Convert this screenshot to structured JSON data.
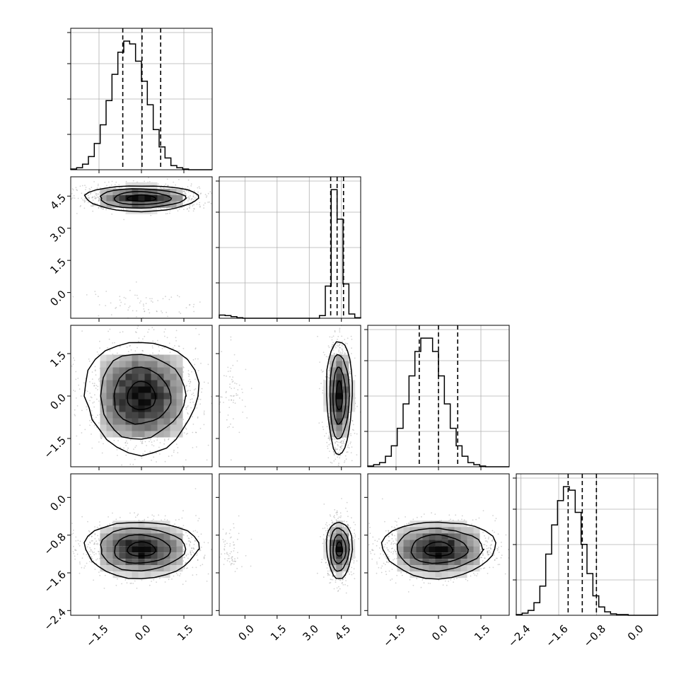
{
  "chart_data": {
    "type": "corner",
    "grid": true,
    "parameters": [
      {
        "range": [
          -2.5,
          2.5
        ],
        "ticks": [
          -1.5,
          0.0,
          1.5
        ],
        "tick_labels": [
          "−1.5",
          "0.0",
          "1.5"
        ],
        "mean": 0.0,
        "std": 1.0,
        "quantiles": [
          -0.66,
          0.02,
          0.68
        ]
      },
      {
        "range": [
          -1.2,
          5.4
        ],
        "ticks": [
          0.0,
          1.5,
          3.0,
          4.5
        ],
        "tick_labels": [
          "0.0",
          "1.5",
          "3.0",
          "4.5"
        ],
        "mean": 4.4,
        "std": 0.3,
        "outlier_mean": -0.7,
        "outlier_std": 0.4,
        "outlier_fraction": 0.05,
        "quantiles": [
          4.0,
          4.3,
          4.6
        ]
      },
      {
        "range": [
          -2.5,
          2.5
        ],
        "ticks": [
          -1.5,
          0.0,
          1.5
        ],
        "tick_labels": [
          "−1.5",
          "0.0",
          "1.5"
        ],
        "mean": 0.0,
        "std": 1.0,
        "quantiles": [
          -0.68,
          0.0,
          0.68
        ]
      },
      {
        "range": [
          -2.5,
          0.5
        ],
        "ticks": [
          -2.4,
          -1.6,
          -0.8,
          0.0
        ],
        "tick_labels": [
          "−2.4",
          "−1.6",
          "−0.8",
          "0.0"
        ],
        "mean": -1.1,
        "std": 0.3,
        "quantiles": [
          -1.4,
          -1.1,
          -0.8
        ]
      }
    ],
    "histograms": [
      {
        "parameter": 0,
        "bins": 24,
        "counts": [
          1,
          3,
          8,
          19,
          38,
          65,
          100,
          138,
          170,
          186,
          182,
          157,
          128,
          94,
          58,
          33,
          17,
          6,
          3,
          1,
          0,
          0,
          0,
          0
        ]
      },
      {
        "parameter": 1,
        "bins": 24,
        "counts": [
          6,
          5,
          3,
          1,
          0,
          0,
          0,
          0,
          0,
          0,
          0,
          0,
          0,
          0,
          0,
          0,
          0,
          5,
          60,
          240,
          185,
          64,
          8,
          1
        ]
      },
      {
        "parameter": 2,
        "bins": 24,
        "counts": [
          1,
          3,
          6,
          15,
          30,
          55,
          90,
          130,
          165,
          184,
          184,
          165,
          130,
          90,
          55,
          30,
          15,
          6,
          3,
          1,
          0,
          0,
          0,
          0
        ]
      },
      {
        "parameter": 3,
        "bins": 24,
        "counts": [
          1,
          3,
          7,
          18,
          42,
          88,
          130,
          165,
          185,
          180,
          148,
          102,
          60,
          28,
          12,
          5,
          2,
          1,
          1,
          0,
          0,
          0,
          0,
          0
        ]
      }
    ],
    "pairs": [
      {
        "x": 0,
        "y": 1,
        "correlation": 0.0
      },
      {
        "x": 0,
        "y": 2,
        "correlation": 0.0
      },
      {
        "x": 1,
        "y": 2,
        "correlation": 0.0
      },
      {
        "x": 0,
        "y": 3,
        "correlation": 0.0
      },
      {
        "x": 1,
        "y": 3,
        "correlation": 0.0
      },
      {
        "x": 2,
        "y": 3,
        "correlation": 0.0
      }
    ],
    "contour_levels_sigma": [
      0.5,
      1.0,
      1.5,
      2.0
    ],
    "colors": {
      "contour": "#000000",
      "density_max": "#000000",
      "density_min": "#ffffff",
      "points": "#808080",
      "grid": "#b0b0b0"
    }
  }
}
